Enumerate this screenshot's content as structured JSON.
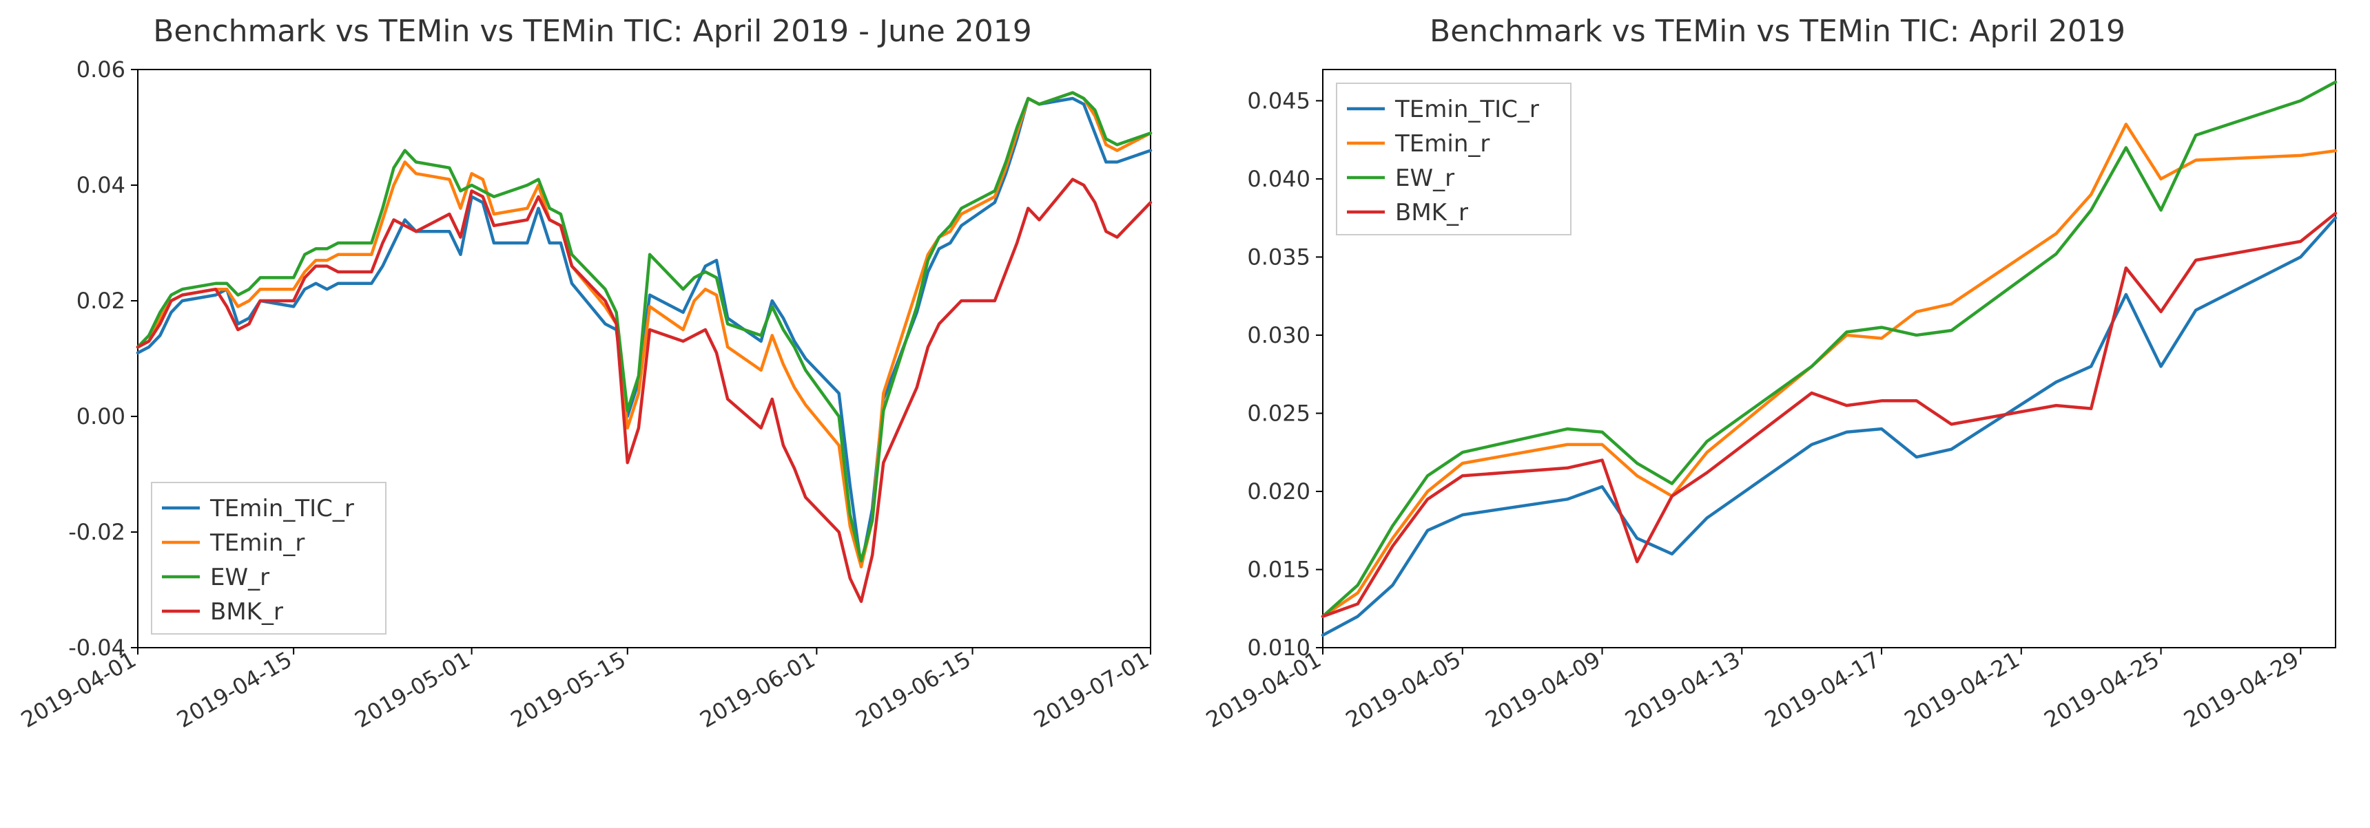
{
  "chart_left": {
    "type": "line",
    "title": "Benchmark vs TEMin vs TEMin TIC: April 2019 - June 2019",
    "title_fontsize": 44,
    "background_color": "#ffffff",
    "plot_background": "#ffffff",
    "axis_color": "#000000",
    "tick_fontsize": 32,
    "tick_color": "#333333",
    "line_width": 4.5,
    "legend": {
      "position": "lower-left",
      "fontsize": 34,
      "border_color": "#cccccc",
      "background": "#ffffff",
      "items": [
        {
          "label": "TEmin_TIC_r",
          "color": "#1f77b4"
        },
        {
          "label": "TEmin_r",
          "color": "#ff7f0e"
        },
        {
          "label": "EW_r",
          "color": "#2ca02c"
        },
        {
          "label": "BMK_r",
          "color": "#d62728"
        }
      ]
    },
    "x": {
      "ticks": [
        "2019-04-01",
        "2019-04-15",
        "2019-05-01",
        "2019-05-15",
        "2019-06-01",
        "2019-06-15",
        "2019-07-01"
      ],
      "tick_positions": [
        0,
        14,
        30,
        44,
        61,
        75,
        91
      ],
      "rotation": 30,
      "range": [
        0,
        91
      ]
    },
    "y": {
      "ticks": [
        -0.04,
        -0.02,
        0.0,
        0.02,
        0.04,
        0.06
      ],
      "range": [
        -0.04,
        0.06
      ]
    },
    "x_index": [
      0,
      1,
      2,
      3,
      4,
      7,
      8,
      9,
      10,
      11,
      14,
      15,
      16,
      17,
      18,
      21,
      22,
      23,
      24,
      25,
      28,
      29,
      30,
      31,
      32,
      35,
      36,
      37,
      38,
      39,
      42,
      43,
      44,
      45,
      46,
      49,
      50,
      51,
      52,
      53,
      56,
      57,
      58,
      59,
      60,
      63,
      64,
      65,
      66,
      67,
      70,
      71,
      72,
      73,
      74,
      77,
      78,
      79,
      80,
      81,
      84,
      85,
      86,
      87,
      88,
      91
    ],
    "series": {
      "TEmin_TIC_r": [
        0.011,
        0.012,
        0.014,
        0.018,
        0.02,
        0.021,
        0.022,
        0.016,
        0.017,
        0.02,
        0.019,
        0.022,
        0.023,
        0.022,
        0.023,
        0.023,
        0.026,
        0.03,
        0.034,
        0.032,
        0.032,
        0.028,
        0.038,
        0.037,
        0.03,
        0.03,
        0.036,
        0.03,
        0.03,
        0.023,
        0.016,
        0.015,
        0.0,
        0.006,
        0.021,
        0.018,
        0.022,
        0.026,
        0.027,
        0.017,
        0.013,
        0.02,
        0.017,
        0.013,
        0.01,
        0.004,
        -0.012,
        -0.026,
        -0.016,
        0.003,
        0.018,
        0.025,
        0.029,
        0.03,
        0.033,
        0.037,
        0.042,
        0.048,
        0.055,
        0.054,
        0.055,
        0.054,
        0.049,
        0.044,
        0.044,
        0.046
      ],
      "TEmin_r": [
        0.012,
        0.013,
        0.017,
        0.02,
        0.021,
        0.022,
        0.022,
        0.019,
        0.02,
        0.022,
        0.022,
        0.025,
        0.027,
        0.027,
        0.028,
        0.028,
        0.034,
        0.04,
        0.044,
        0.042,
        0.041,
        0.036,
        0.042,
        0.041,
        0.035,
        0.036,
        0.04,
        0.034,
        0.033,
        0.026,
        0.019,
        0.016,
        -0.002,
        0.004,
        0.019,
        0.015,
        0.02,
        0.022,
        0.021,
        0.012,
        0.008,
        0.014,
        0.009,
        0.005,
        0.002,
        -0.005,
        -0.019,
        -0.026,
        -0.018,
        0.004,
        0.022,
        0.028,
        0.031,
        0.032,
        0.035,
        0.038,
        0.043,
        0.049,
        0.055,
        0.054,
        0.056,
        0.055,
        0.052,
        0.047,
        0.046,
        0.049
      ],
      "EW_r": [
        0.012,
        0.014,
        0.018,
        0.021,
        0.022,
        0.023,
        0.023,
        0.021,
        0.022,
        0.024,
        0.024,
        0.028,
        0.029,
        0.029,
        0.03,
        0.03,
        0.036,
        0.043,
        0.046,
        0.044,
        0.043,
        0.039,
        0.04,
        0.039,
        0.038,
        0.04,
        0.041,
        0.036,
        0.035,
        0.028,
        0.022,
        0.018,
        0.001,
        0.007,
        0.028,
        0.022,
        0.024,
        0.025,
        0.024,
        0.016,
        0.014,
        0.019,
        0.015,
        0.012,
        0.008,
        0.0,
        -0.017,
        -0.025,
        -0.018,
        0.001,
        0.019,
        0.027,
        0.031,
        0.033,
        0.036,
        0.039,
        0.044,
        0.05,
        0.055,
        0.054,
        0.056,
        0.055,
        0.053,
        0.048,
        0.047,
        0.049
      ],
      "BMK_r": [
        0.012,
        0.013,
        0.016,
        0.02,
        0.021,
        0.022,
        0.019,
        0.015,
        0.016,
        0.02,
        0.02,
        0.024,
        0.026,
        0.026,
        0.025,
        0.025,
        0.03,
        0.034,
        0.033,
        0.032,
        0.035,
        0.031,
        0.039,
        0.038,
        0.033,
        0.034,
        0.038,
        0.034,
        0.033,
        0.026,
        0.02,
        0.016,
        -0.008,
        -0.002,
        0.015,
        0.013,
        0.014,
        0.015,
        0.011,
        0.003,
        -0.002,
        0.003,
        -0.005,
        -0.009,
        -0.014,
        -0.02,
        -0.028,
        -0.032,
        -0.024,
        -0.008,
        0.005,
        0.012,
        0.016,
        0.018,
        0.02,
        0.02,
        0.025,
        0.03,
        0.036,
        0.034,
        0.041,
        0.04,
        0.037,
        0.032,
        0.031,
        0.037
      ]
    }
  },
  "chart_right": {
    "type": "line",
    "title": "Benchmark vs TEMin vs TEMin TIC: April 2019",
    "title_fontsize": 44,
    "background_color": "#ffffff",
    "plot_background": "#ffffff",
    "axis_color": "#000000",
    "tick_fontsize": 32,
    "tick_color": "#333333",
    "line_width": 4.5,
    "legend": {
      "position": "upper-left",
      "fontsize": 34,
      "border_color": "#cccccc",
      "background": "#ffffff",
      "items": [
        {
          "label": "TEmin_TIC_r",
          "color": "#1f77b4"
        },
        {
          "label": "TEmin_r",
          "color": "#ff7f0e"
        },
        {
          "label": "EW_r",
          "color": "#2ca02c"
        },
        {
          "label": "BMK_r",
          "color": "#d62728"
        }
      ]
    },
    "x": {
      "ticks": [
        "2019-04-01",
        "2019-04-05",
        "2019-04-09",
        "2019-04-13",
        "2019-04-17",
        "2019-04-21",
        "2019-04-25",
        "2019-04-29"
      ],
      "tick_positions": [
        0,
        4,
        8,
        12,
        16,
        20,
        24,
        28
      ],
      "rotation": 30,
      "range": [
        0,
        29
      ]
    },
    "y": {
      "ticks": [
        0.01,
        0.015,
        0.02,
        0.025,
        0.03,
        0.035,
        0.04,
        0.045
      ],
      "range": [
        0.01,
        0.047
      ]
    },
    "x_index": [
      0,
      1,
      2,
      3,
      4,
      7,
      8,
      9,
      10,
      11,
      14,
      15,
      16,
      17,
      18,
      21,
      22,
      23,
      24,
      25,
      28,
      29
    ],
    "series": {
      "TEmin_TIC_r": [
        0.0108,
        0.012,
        0.014,
        0.0175,
        0.0185,
        0.0195,
        0.0203,
        0.017,
        0.016,
        0.0183,
        0.023,
        0.0238,
        0.024,
        0.0222,
        0.0227,
        0.027,
        0.028,
        0.0326,
        0.028,
        0.0316,
        0.035,
        0.0375
      ],
      "TEmin_r": [
        0.012,
        0.0135,
        0.017,
        0.02,
        0.0218,
        0.023,
        0.023,
        0.021,
        0.0197,
        0.0225,
        0.028,
        0.03,
        0.0298,
        0.0315,
        0.032,
        0.0365,
        0.039,
        0.0435,
        0.04,
        0.0412,
        0.0415,
        0.0418
      ],
      "EW_r": [
        0.012,
        0.014,
        0.0178,
        0.021,
        0.0225,
        0.024,
        0.0238,
        0.0218,
        0.0205,
        0.0232,
        0.028,
        0.0302,
        0.0305,
        0.03,
        0.0303,
        0.0352,
        0.038,
        0.042,
        0.038,
        0.0428,
        0.045,
        0.0462
      ],
      "BMK_r": [
        0.012,
        0.0128,
        0.0165,
        0.0195,
        0.021,
        0.0215,
        0.022,
        0.0155,
        0.0197,
        0.0212,
        0.0263,
        0.0255,
        0.0258,
        0.0258,
        0.0243,
        0.0255,
        0.0253,
        0.0343,
        0.0315,
        0.0348,
        0.036,
        0.0378
      ]
    }
  }
}
